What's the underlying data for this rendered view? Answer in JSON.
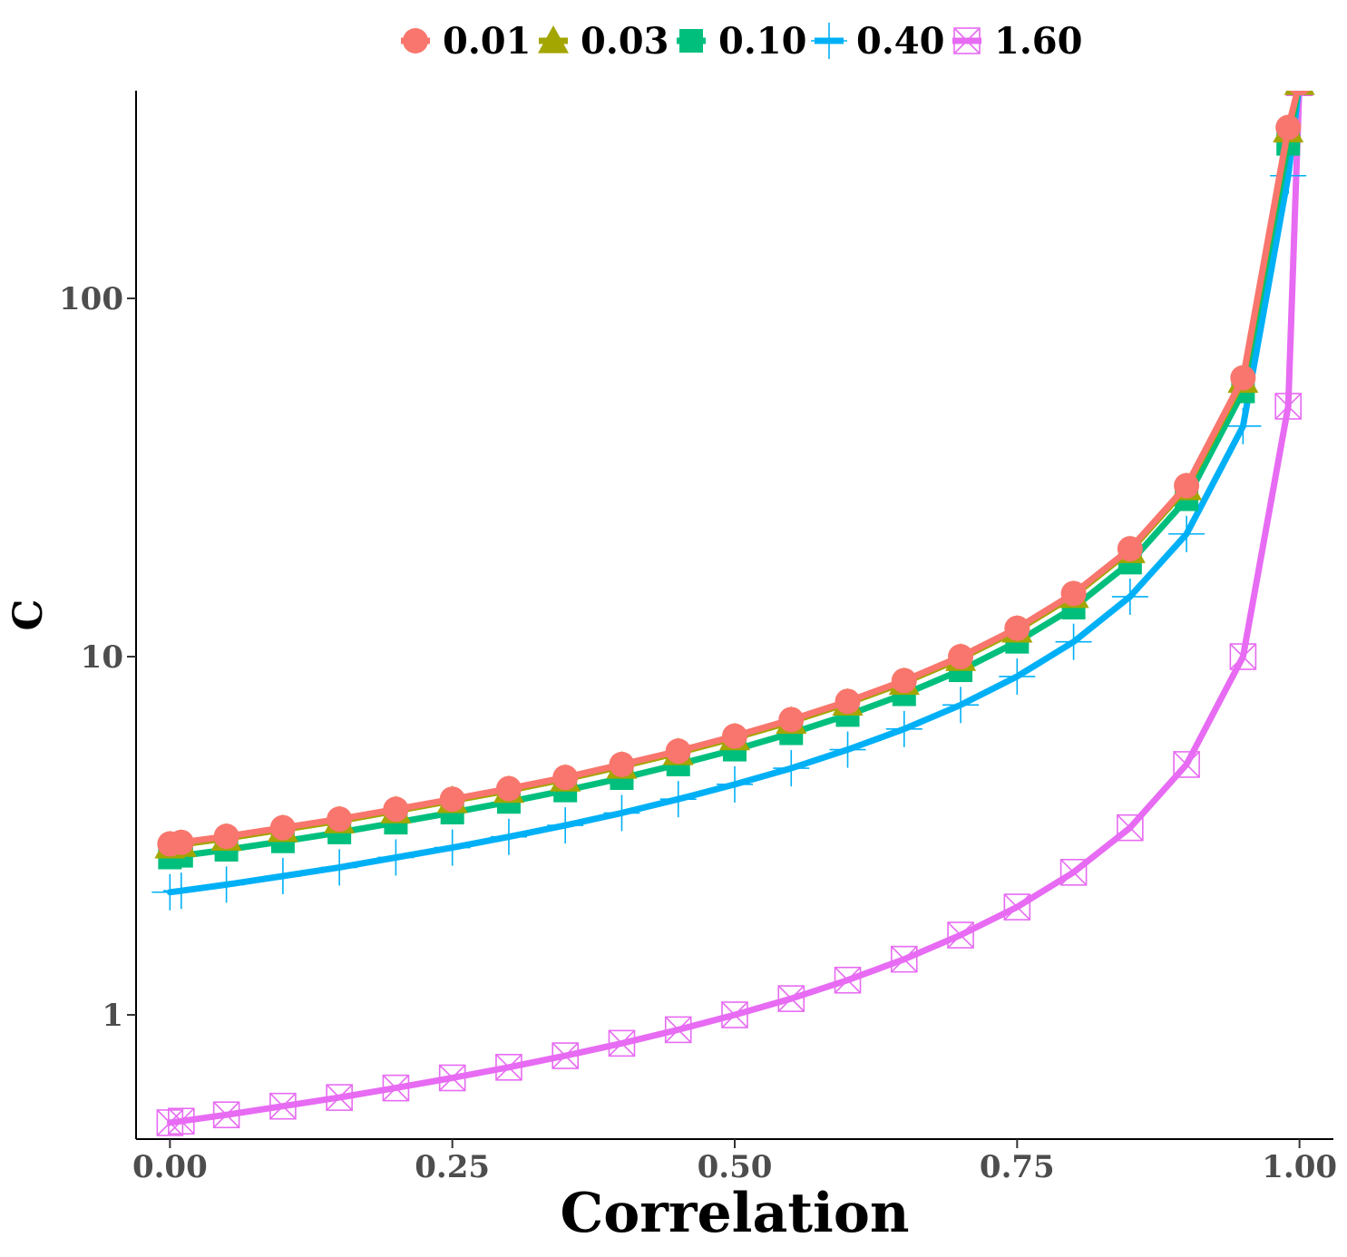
{
  "chart_data": {
    "type": "line",
    "xlabel": "Correlation",
    "ylabel": "C",
    "xlim": [
      -0.03,
      1.03
    ],
    "ylim": [
      0.45,
      380
    ],
    "y_scale": "log",
    "x_ticks": [
      0,
      0.25,
      0.5,
      0.75,
      1.0
    ],
    "x_tick_labels": [
      "0.00",
      "0.25",
      "0.50",
      "0.75",
      "1.00"
    ],
    "y_ticks": [
      1,
      10,
      100
    ],
    "y_tick_labels": [
      "1",
      "10",
      "100"
    ],
    "legend_position": "top",
    "grid": false,
    "x": [
      0,
      0.01,
      0.05,
      0.1,
      0.15,
      0.2,
      0.25,
      0.3,
      0.35,
      0.4,
      0.45,
      0.5,
      0.55,
      0.6,
      0.65,
      0.7,
      0.75,
      0.8,
      0.85,
      0.9,
      0.95,
      0.99,
      1.0
    ],
    "series": [
      {
        "name": "0.01",
        "color": "#F8766D",
        "marker": "circle",
        "values": [
          3.0,
          3.03,
          3.15,
          3.33,
          3.52,
          3.75,
          4.0,
          4.28,
          4.6,
          5.0,
          5.45,
          6.0,
          6.67,
          7.5,
          8.57,
          10.0,
          12.0,
          15.0,
          20.0,
          30.0,
          60.0,
          300.0,
          400.0
        ]
      },
      {
        "name": "0.03",
        "color": "#A3A500",
        "marker": "triangle",
        "values": [
          2.96,
          2.99,
          3.11,
          3.29,
          3.48,
          3.71,
          3.96,
          4.23,
          4.55,
          4.94,
          5.39,
          5.93,
          6.59,
          7.41,
          8.47,
          9.88,
          11.85,
          14.8,
          19.75,
          29.6,
          59.0,
          295.0,
          400.0
        ]
      },
      {
        "name": "0.10",
        "color": "#00BF7D",
        "marker": "square",
        "values": [
          2.75,
          2.78,
          2.89,
          3.05,
          3.23,
          3.44,
          3.67,
          3.93,
          4.23,
          4.58,
          5.0,
          5.5,
          6.11,
          6.87,
          7.85,
          9.16,
          11.0,
          13.7,
          18.3,
          27.5,
          55.0,
          270.0,
          400.0
        ]
      },
      {
        "name": "0.40",
        "color": "#00B0F6",
        "marker": "plus",
        "values": [
          2.2,
          2.22,
          2.31,
          2.44,
          2.58,
          2.75,
          2.93,
          3.14,
          3.38,
          3.66,
          4.0,
          4.4,
          4.88,
          5.5,
          6.28,
          7.33,
          8.8,
          11.0,
          14.7,
          22.0,
          44.0,
          220.0,
          400.0
        ]
      },
      {
        "name": "1.60",
        "color": "#E76BF3",
        "marker": "square-x",
        "values": [
          0.5,
          0.505,
          0.526,
          0.556,
          0.588,
          0.625,
          0.667,
          0.714,
          0.769,
          0.833,
          0.909,
          1.0,
          1.11,
          1.25,
          1.43,
          1.67,
          2.0,
          2.5,
          3.33,
          5.0,
          10.0,
          50.0,
          400.0
        ]
      }
    ]
  }
}
